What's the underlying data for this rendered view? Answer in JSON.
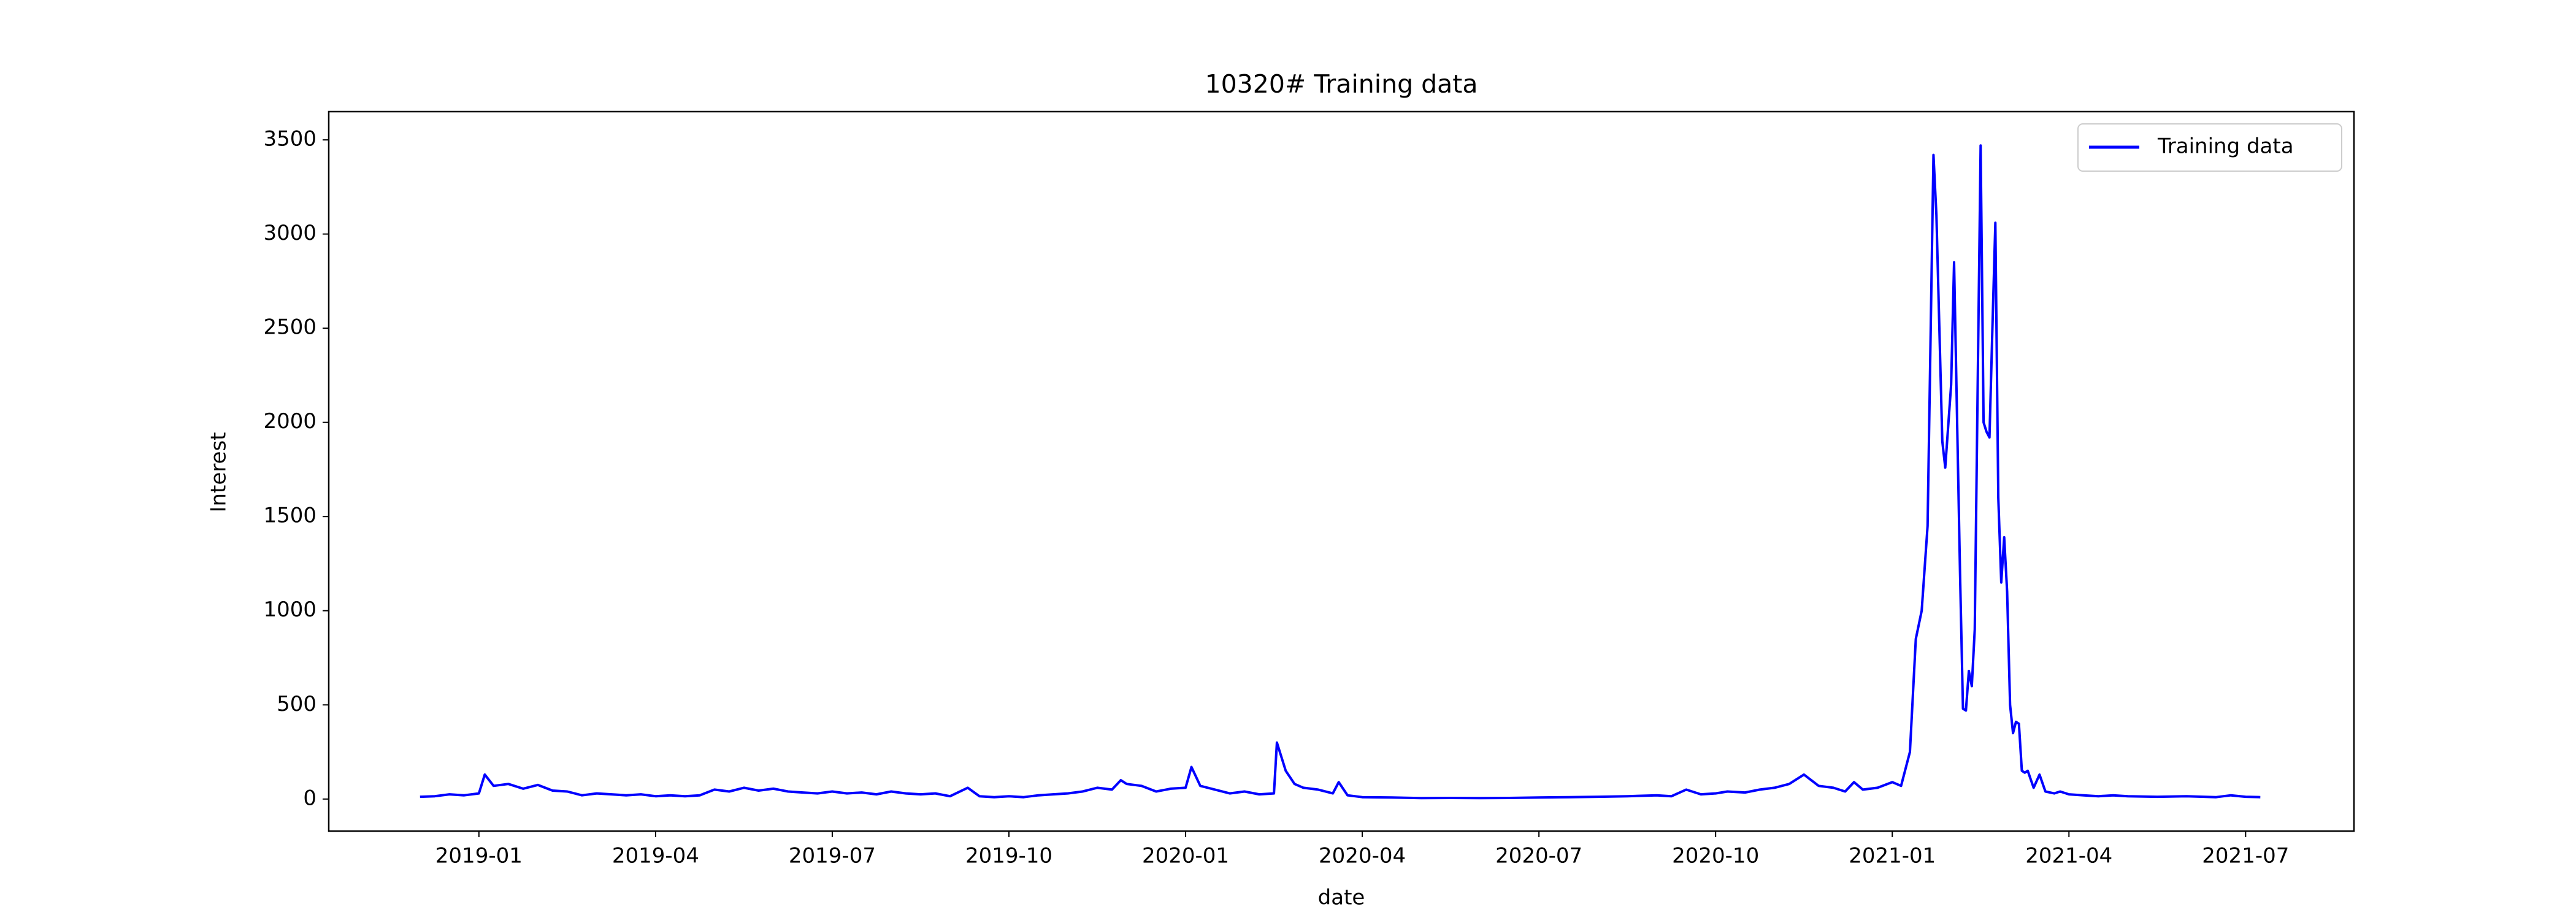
{
  "chart_data": {
    "type": "line",
    "title": "10320# Training data",
    "x_label": "date",
    "y_label": "Interest",
    "x": [
      -1.0,
      -0.75,
      -0.5,
      -0.25,
      0,
      0.1,
      0.25,
      0.5,
      0.75,
      1.0,
      1.25,
      1.5,
      1.75,
      2.0,
      2.25,
      2.5,
      2.75,
      3.0,
      3.25,
      3.5,
      3.75,
      4.0,
      4.25,
      4.5,
      4.75,
      5.0,
      5.25,
      5.5,
      5.75,
      6.0,
      6.25,
      6.5,
      6.75,
      7.0,
      7.25,
      7.5,
      7.75,
      8.0,
      8.3,
      8.5,
      8.75,
      9.0,
      9.25,
      9.5,
      9.75,
      10.0,
      10.25,
      10.5,
      10.75,
      10.9,
      11.0,
      11.25,
      11.5,
      11.75,
      12.0,
      12.1,
      12.25,
      12.5,
      12.75,
      13.0,
      13.25,
      13.5,
      13.55,
      13.7,
      13.85,
      14.0,
      14.25,
      14.5,
      14.6,
      14.75,
      15.0,
      15.5,
      16.0,
      16.5,
      17.0,
      17.5,
      18.0,
      18.5,
      19.0,
      19.5,
      20.0,
      20.25,
      20.5,
      20.75,
      21.0,
      21.2,
      21.5,
      21.75,
      22.0,
      22.25,
      22.5,
      22.75,
      23.0,
      23.2,
      23.35,
      23.5,
      23.75,
      24.0,
      24.15,
      24.3,
      24.4,
      24.5,
      24.6,
      24.7,
      24.75,
      24.85,
      24.9,
      25.0,
      25.05,
      25.15,
      25.2,
      25.25,
      25.3,
      25.35,
      25.4,
      25.45,
      25.5,
      25.55,
      25.6,
      25.65,
      25.7,
      25.75,
      25.8,
      25.85,
      25.9,
      25.95,
      26.0,
      26.05,
      26.1,
      26.15,
      26.2,
      26.25,
      26.3,
      26.4,
      26.5,
      26.6,
      26.75,
      26.85,
      27.0,
      27.25,
      27.5,
      27.75,
      28.0,
      28.5,
      29.0,
      29.5,
      29.75,
      30.0,
      30.25
    ],
    "series": [
      {
        "name": "Training data",
        "color": "#0000ff",
        "values": [
          12,
          15,
          25,
          20,
          30,
          130,
          70,
          80,
          55,
          75,
          45,
          40,
          20,
          30,
          25,
          20,
          25,
          15,
          20,
          15,
          20,
          50,
          40,
          60,
          45,
          55,
          40,
          35,
          30,
          40,
          30,
          35,
          25,
          40,
          30,
          25,
          30,
          15,
          60,
          15,
          10,
          15,
          10,
          20,
          25,
          30,
          40,
          60,
          50,
          100,
          80,
          70,
          40,
          55,
          60,
          170,
          70,
          50,
          30,
          40,
          25,
          30,
          300,
          150,
          80,
          60,
          50,
          30,
          90,
          20,
          10,
          8,
          5,
          6,
          5,
          6,
          8,
          10,
          12,
          15,
          20,
          15,
          50,
          25,
          30,
          40,
          35,
          50,
          60,
          80,
          130,
          70,
          60,
          40,
          90,
          50,
          60,
          90,
          70,
          250,
          850,
          1000,
          1450,
          3420,
          3100,
          1900,
          1760,
          2200,
          2850,
          1200,
          480,
          470,
          680,
          600,
          900,
          2200,
          3470,
          2000,
          1950,
          1920,
          2500,
          3060,
          1600,
          1150,
          1390,
          1100,
          500,
          350,
          410,
          400,
          150,
          140,
          150,
          60,
          130,
          40,
          30,
          40,
          25,
          20,
          15,
          20,
          15,
          12,
          15,
          10,
          20,
          12,
          10
        ]
      }
    ],
    "xlim": [
      -2.55,
      31.84
    ],
    "xticks": [
      {
        "value": 0,
        "label": "2019-01"
      },
      {
        "value": 3,
        "label": "2019-04"
      },
      {
        "value": 6,
        "label": "2019-07"
      },
      {
        "value": 9,
        "label": "2019-10"
      },
      {
        "value": 12,
        "label": "2020-01"
      },
      {
        "value": 15,
        "label": "2020-04"
      },
      {
        "value": 18,
        "label": "2020-07"
      },
      {
        "value": 21,
        "label": "2020-10"
      },
      {
        "value": 24,
        "label": "2021-01"
      },
      {
        "value": 27,
        "label": "2021-04"
      },
      {
        "value": 30,
        "label": "2021-07"
      }
    ],
    "ylim": [
      -170,
      3650
    ],
    "yticks": [
      0,
      500,
      1000,
      1500,
      2000,
      2500,
      3000,
      3500
    ],
    "legend": "upper right",
    "grid": false
  }
}
